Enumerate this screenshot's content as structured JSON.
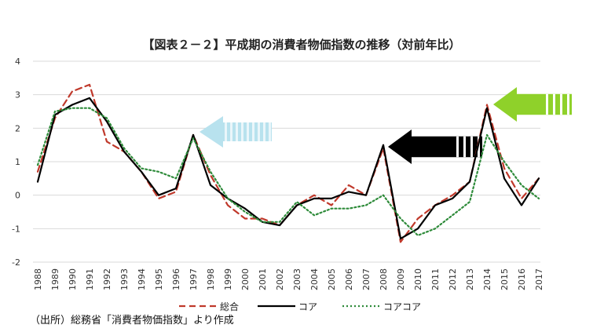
{
  "chart_data": {
    "type": "line",
    "title": "【図表２－２】平成期の消費者物価指数の推移（対前年比）",
    "xlabel": "",
    "ylabel": "",
    "ylim": [
      -2,
      4
    ],
    "yticks": [
      "4",
      "3",
      "2",
      "1",
      "0",
      "-1",
      "-2"
    ],
    "categories": [
      "1988",
      "1989",
      "1990",
      "1991",
      "1992",
      "1993",
      "1994",
      "1995",
      "1996",
      "1997",
      "1998",
      "1999",
      "2000",
      "2001",
      "2002",
      "2003",
      "2004",
      "2005",
      "2006",
      "2007",
      "2008",
      "2009",
      "2010",
      "2011",
      "2012",
      "2013",
      "2014",
      "2015",
      "2016",
      "2017"
    ],
    "series": [
      {
        "name": "総合",
        "color": "#c0392b",
        "style": "dashed",
        "values": [
          0.7,
          2.3,
          3.1,
          3.3,
          1.6,
          1.3,
          0.7,
          -0.1,
          0.1,
          1.8,
          0.6,
          -0.3,
          -0.7,
          -0.7,
          -0.9,
          -0.3,
          0.0,
          -0.3,
          0.3,
          0.0,
          1.4,
          -1.4,
          -0.7,
          -0.3,
          0.0,
          0.4,
          2.7,
          0.8,
          -0.1,
          0.5
        ]
      },
      {
        "name": "コア",
        "color": "#000000",
        "style": "solid",
        "values": [
          0.4,
          2.4,
          2.7,
          2.9,
          2.2,
          1.3,
          0.7,
          0.0,
          0.2,
          1.8,
          0.3,
          -0.1,
          -0.4,
          -0.8,
          -0.9,
          -0.3,
          -0.1,
          -0.1,
          0.1,
          0.0,
          1.5,
          -1.3,
          -1.0,
          -0.3,
          -0.1,
          0.4,
          2.6,
          0.5,
          -0.3,
          0.5
        ]
      },
      {
        "name": "コアコア",
        "color": "#2e8b3a",
        "style": "dotted",
        "values": [
          0.9,
          2.5,
          2.6,
          2.6,
          2.3,
          1.4,
          0.8,
          0.7,
          0.5,
          1.7,
          0.7,
          -0.1,
          -0.5,
          -0.8,
          -0.8,
          -0.2,
          -0.6,
          -0.4,
          -0.4,
          -0.3,
          0.0,
          -0.7,
          -1.2,
          -1.0,
          -0.6,
          -0.2,
          1.8,
          1.0,
          0.3,
          -0.1
        ]
      }
    ],
    "grid": true,
    "legend_position": "bottom"
  },
  "source_note": "（出所）総務省「消費者物価指数」より作成",
  "colors": {
    "arrow_light_blue": "#b8e2ee",
    "arrow_black": "#000000",
    "arrow_green": "#8fd12a"
  }
}
